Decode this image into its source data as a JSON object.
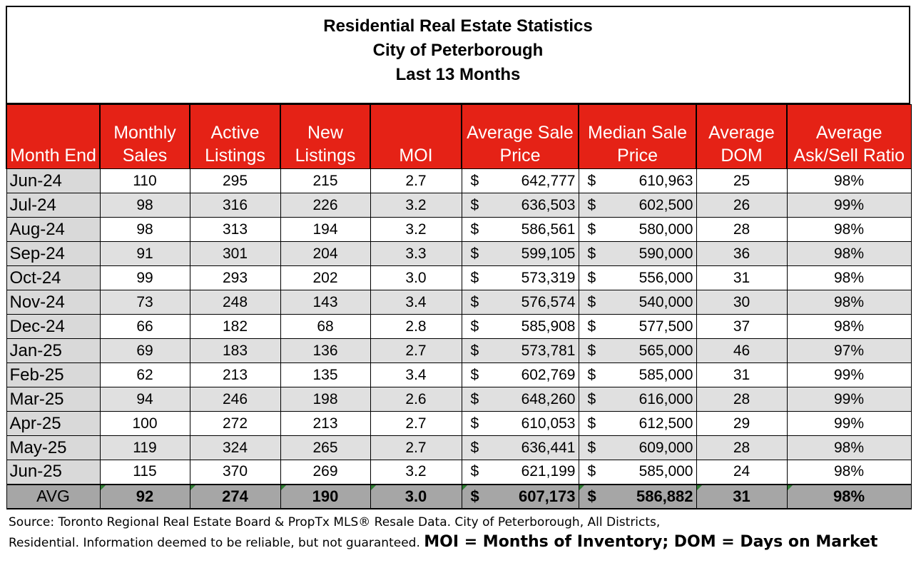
{
  "title": {
    "line1": "Residential Real Estate Statistics",
    "line2": "City of Peterborough",
    "line3": "Last 13 Months"
  },
  "columns": {
    "month": "Month End",
    "sales": [
      "Monthly",
      "Sales"
    ],
    "active": [
      "Active",
      "Listings"
    ],
    "new": [
      "New",
      "Listings"
    ],
    "moi": "MOI",
    "avg_price": [
      "Average Sale",
      "Price"
    ],
    "median_price": [
      "Median Sale",
      "Price"
    ],
    "dom": [
      "Average",
      "DOM"
    ],
    "ratio": [
      "Average",
      "Ask/Sell Ratio"
    ]
  },
  "currency_symbol": "$",
  "rows": [
    {
      "month": "Jun-24",
      "sales": "110",
      "active": "295",
      "new": "215",
      "moi": "2.7",
      "avg_price": "642,777",
      "median_price": "610,963",
      "dom": "25",
      "ratio": "98%"
    },
    {
      "month": "Jul-24",
      "sales": "98",
      "active": "316",
      "new": "226",
      "moi": "3.2",
      "avg_price": "636,503",
      "median_price": "602,500",
      "dom": "26",
      "ratio": "99%"
    },
    {
      "month": "Aug-24",
      "sales": "98",
      "active": "313",
      "new": "194",
      "moi": "3.2",
      "avg_price": "586,561",
      "median_price": "580,000",
      "dom": "28",
      "ratio": "98%"
    },
    {
      "month": "Sep-24",
      "sales": "91",
      "active": "301",
      "new": "204",
      "moi": "3.3",
      "avg_price": "599,105",
      "median_price": "590,000",
      "dom": "36",
      "ratio": "98%"
    },
    {
      "month": "Oct-24",
      "sales": "99",
      "active": "293",
      "new": "202",
      "moi": "3.0",
      "avg_price": "573,319",
      "median_price": "556,000",
      "dom": "31",
      "ratio": "98%"
    },
    {
      "month": "Nov-24",
      "sales": "73",
      "active": "248",
      "new": "143",
      "moi": "3.4",
      "avg_price": "576,574",
      "median_price": "540,000",
      "dom": "30",
      "ratio": "98%"
    },
    {
      "month": "Dec-24",
      "sales": "66",
      "active": "182",
      "new": "68",
      "moi": "2.8",
      "avg_price": "585,908",
      "median_price": "577,500",
      "dom": "37",
      "ratio": "98%"
    },
    {
      "month": "Jan-25",
      "sales": "69",
      "active": "183",
      "new": "136",
      "moi": "2.7",
      "avg_price": "573,781",
      "median_price": "565,000",
      "dom": "46",
      "ratio": "97%"
    },
    {
      "month": "Feb-25",
      "sales": "62",
      "active": "213",
      "new": "135",
      "moi": "3.4",
      "avg_price": "602,769",
      "median_price": "585,000",
      "dom": "31",
      "ratio": "99%"
    },
    {
      "month": "Mar-25",
      "sales": "94",
      "active": "246",
      "new": "198",
      "moi": "2.6",
      "avg_price": "648,260",
      "median_price": "616,000",
      "dom": "28",
      "ratio": "99%"
    },
    {
      "month": "Apr-25",
      "sales": "100",
      "active": "272",
      "new": "213",
      "moi": "2.7",
      "avg_price": "610,053",
      "median_price": "612,500",
      "dom": "29",
      "ratio": "99%"
    },
    {
      "month": "May-25",
      "sales": "119",
      "active": "324",
      "new": "265",
      "moi": "2.7",
      "avg_price": "636,441",
      "median_price": "609,000",
      "dom": "28",
      "ratio": "98%"
    },
    {
      "month": "Jun-25",
      "sales": "115",
      "active": "370",
      "new": "269",
      "moi": "3.2",
      "avg_price": "621,199",
      "median_price": "585,000",
      "dom": "24",
      "ratio": "98%"
    }
  ],
  "average": {
    "label": "AVG",
    "sales": "92",
    "active": "274",
    "new": "190",
    "moi": "3.0",
    "avg_price": "607,173",
    "median_price": "586,882",
    "dom": "31",
    "ratio": "98%"
  },
  "source": {
    "line1": "Source: Toronto Regional Real Estate Board & PropTx MLS® Resale Data. City of Peterborough, All Districts,",
    "line2": "Residential.  Information deemed to be reliable, but not guaranteed.",
    "legend": "MOI = Months of Inventory; DOM = Days on Market"
  },
  "colors": {
    "header_bg": "#e52216",
    "header_text": "#ffffff",
    "row_alt": "#e0e0e0",
    "month_col": "#d9d9d9",
    "avg_row": "#a6a6a6",
    "cell_marker": "#2e7d32"
  }
}
